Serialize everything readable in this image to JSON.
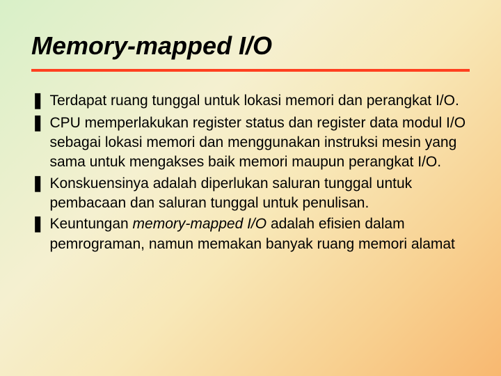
{
  "slide": {
    "title": "Memory-mapped I/O",
    "title_fontsize": 36,
    "title_fontstyle": "italic",
    "title_fontweight": "bold",
    "title_color": "#000000",
    "divider_color": "#ff4020",
    "divider_height": 4,
    "background_gradient": {
      "direction": "135deg",
      "stops": [
        "#d8f0c8",
        "#f5f0d0",
        "#f8e8b8",
        "#f8d090",
        "#f8b870"
      ]
    },
    "bullet_marker": "❚",
    "bullet_fontsize": 21,
    "bullet_color": "#000000",
    "bullets": [
      {
        "text": "Terdapat ruang tunggal untuk lokasi memori dan perangkat I/O."
      },
      {
        "text": "CPU memperlakukan register status dan register data modul I/O sebagai lokasi memori dan menggunakan instruksi mesin yang sama untuk mengakses baik memori maupun perangkat I/O."
      },
      {
        "text": "Konskuensinya adalah diperlukan saluran tunggal untuk pembacaan dan saluran tunggal untuk penulisan."
      },
      {
        "text_prefix": "Keuntungan ",
        "italic": "memory-mapped I/O",
        "text_suffix": " adalah efisien dalam pemrograman, namun memakan banyak ruang memori alamat"
      }
    ]
  }
}
